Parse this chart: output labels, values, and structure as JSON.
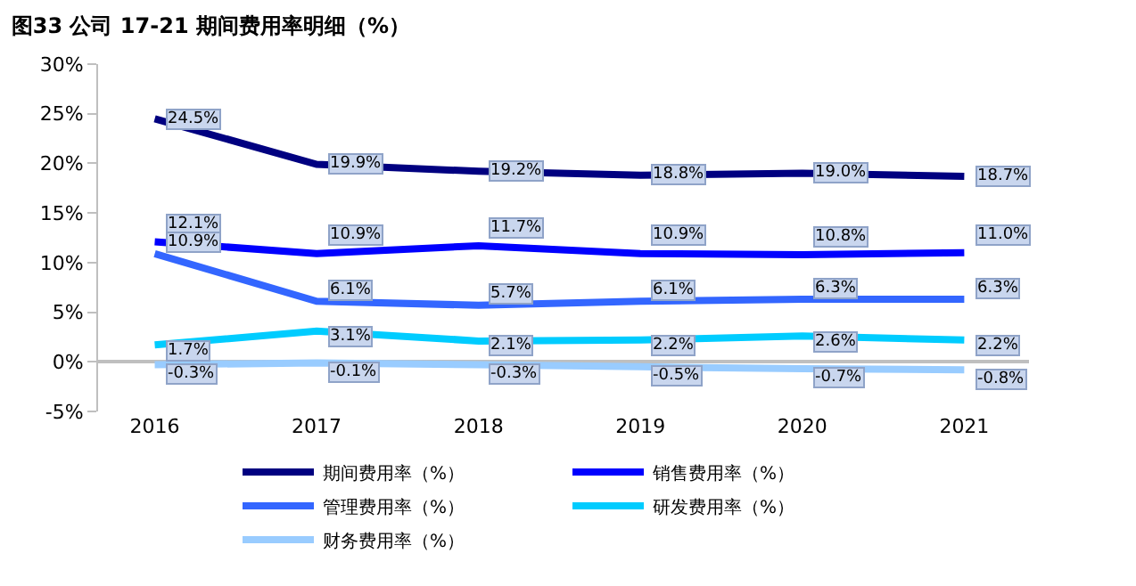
{
  "chart_data": {
    "type": "line",
    "title": "图33 公司 17-21 期间费用率明细（%）",
    "categories": [
      "2016",
      "2017",
      "2018",
      "2019",
      "2020",
      "2021"
    ],
    "ylim": [
      -5,
      30
    ],
    "yticks": [
      {
        "value": -5,
        "label": "-5%"
      },
      {
        "value": 0,
        "label": "0%"
      },
      {
        "value": 5,
        "label": "5%"
      },
      {
        "value": 10,
        "label": "10%"
      },
      {
        "value": 15,
        "label": "15%"
      },
      {
        "value": 20,
        "label": "20%"
      },
      {
        "value": 25,
        "label": "25%"
      },
      {
        "value": 30,
        "label": "30%"
      }
    ],
    "legend": "bottom",
    "marker": "none",
    "line_style": "solid",
    "series": [
      {
        "name": "期间费用率（%）",
        "color": "#000080",
        "values": [
          24.5,
          19.9,
          19.2,
          18.8,
          19.0,
          18.7
        ],
        "value_labels": [
          "24.5%",
          "19.9%",
          "19.2%",
          "18.8%",
          "19.0%",
          "18.7%"
        ]
      },
      {
        "name": "销售费用率（%）",
        "color": "#0000ff",
        "values": [
          12.1,
          10.9,
          11.7,
          10.9,
          10.8,
          11.0
        ],
        "value_labels": [
          "12.1%",
          "10.9%",
          "11.7%",
          "10.9%",
          "10.8%",
          "11.0%"
        ]
      },
      {
        "name": "管理费用率（%）",
        "color": "#3366ff",
        "values": [
          10.9,
          6.1,
          5.7,
          6.1,
          6.3,
          6.3
        ],
        "value_labels": [
          "10.9%",
          "6.1%",
          "5.7%",
          "6.1%",
          "6.3%",
          "6.3%"
        ]
      },
      {
        "name": "研发费用率（%）",
        "color": "#00ccff",
        "values": [
          1.7,
          3.1,
          2.1,
          2.2,
          2.6,
          2.2
        ],
        "value_labels": [
          "1.7%",
          "3.1%",
          "2.1%",
          "2.2%",
          "2.6%",
          "2.2%"
        ]
      },
      {
        "name": "财务费用率（%）",
        "color": "#99ccff",
        "values": [
          -0.3,
          -0.1,
          -0.3,
          -0.5,
          -0.7,
          -0.8
        ],
        "value_labels": [
          "-0.3%",
          "-0.1%",
          "-0.3%",
          "-0.5%",
          "-0.7%",
          "-0.8%"
        ]
      }
    ]
  }
}
